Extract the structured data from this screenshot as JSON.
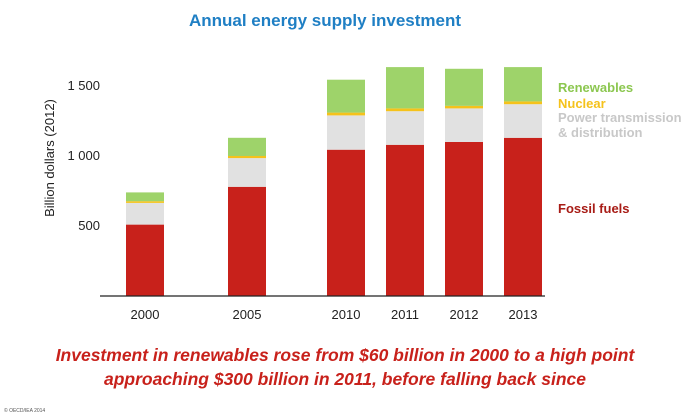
{
  "chart_data": {
    "type": "bar",
    "stacked": true,
    "title": "Annual energy supply investment",
    "ylabel": "Billion dollars (2012)",
    "xlabel": "",
    "ylim": [
      0,
      1700
    ],
    "yticks": [
      500,
      1000,
      1500
    ],
    "ytick_labels": [
      "500",
      "1 000",
      "1 500"
    ],
    "grid": false,
    "legend_placement": "right",
    "categories": [
      "2000",
      "2005",
      "2010",
      "2011",
      "2012",
      "2013"
    ],
    "series": [
      {
        "name": "Fossil fuels",
        "color": "#c8211b",
        "values": [
          510,
          780,
          1045,
          1080,
          1100,
          1130
        ]
      },
      {
        "name": "Power transmission & distribution",
        "color": "#e1e1e1",
        "values": [
          155,
          205,
          245,
          240,
          240,
          240
        ]
      },
      {
        "name": "Nuclear",
        "color": "#f5c21b",
        "values": [
          12,
          15,
          20,
          20,
          18,
          20
        ]
      },
      {
        "name": "Renewables",
        "color": "#9ed36a",
        "values": [
          63,
          130,
          235,
          295,
          265,
          245
        ]
      }
    ],
    "legend": [
      {
        "label": "Renewables",
        "color": "#8cc750"
      },
      {
        "label": "Nuclear",
        "color": "#f5c21b"
      },
      {
        "label": "Power transmission",
        "color": "#c8c8c8"
      },
      {
        "label": "& distribution",
        "color": "#c8c8c8"
      },
      {
        "label": "Fossil fuels",
        "color": "#a81c16"
      }
    ]
  },
  "caption": {
    "line1": "Investment in renewables rose from $60 billion in 2000 to a high point",
    "line2": "approaching $300 billion in 2011, before falling back since"
  },
  "copyright": "© OECD/IEA 2014"
}
